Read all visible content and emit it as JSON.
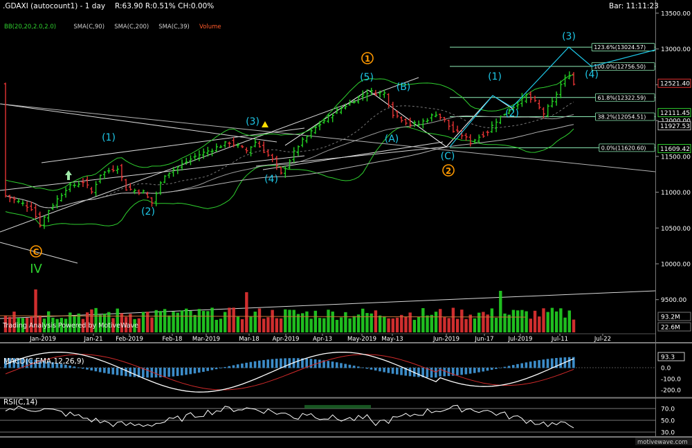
{
  "header": {
    "title": ".GDAXI (autocount1) - 1 day",
    "stats": "R:63.90  R:0.51% CH:0.00%",
    "bar_time": "Bar: 11:11:23"
  },
  "indicators": [
    {
      "label": "BB(20,20,2.0,2.0)",
      "color": "#2fd12f"
    },
    {
      "label": "SMA(C,90)",
      "color": "#cfcfcf"
    },
    {
      "label": "SMA(C,200)",
      "color": "#cfcfcf"
    },
    {
      "label": "SMA(C,39)",
      "color": "#cfcfcf"
    },
    {
      "label": "Volume",
      "color": "#ff5a2a"
    }
  ],
  "watermark": "Trading Analysis Powered by MotiveWave",
  "brand": "motivewave.com",
  "colors": {
    "bull": "#22d122",
    "bear": "#e53333",
    "bb": "#2fd12f",
    "sma": "#b8b8b8",
    "wave_minor": "#1ec8e8",
    "wave_major": "#ff9900",
    "wave_primary": "#2fd12f",
    "fib": "#8ff0b8",
    "macd": "#ffffff",
    "signal": "#d12a2a",
    "hist": "#3c8cc8"
  },
  "chart_data": {
    "type": "candlestick",
    "symbol": ".GDAXI",
    "timeframe": "1 day",
    "ylim": [
      9600,
      13550
    ],
    "y_ticks": [
      {
        "label": "13500.00",
        "value": 13500
      },
      {
        "label": "13000.00",
        "value": 13000
      },
      {
        "label": "12500.00",
        "value": 12500
      },
      {
        "label": "12000.00",
        "value": 12000
      },
      {
        "label": "11500.00",
        "value": 11500
      },
      {
        "label": "11000.00",
        "value": 11000
      },
      {
        "label": "10500.00",
        "value": 10500
      },
      {
        "label": "10000.00",
        "value": 10000
      },
      {
        "label": "9500.00",
        "value": 9500
      }
    ],
    "x_ticks": [
      "Jan-2019",
      "Jan-21",
      "Feb-2019",
      "Feb-18",
      "Mar-2019",
      "Mar-18",
      "Apr-2019",
      "Apr-13",
      "May-2019",
      "May-13",
      "Jun-2019",
      "Jun-17",
      "Jul-2019",
      "Jul-11",
      "Jul-22"
    ],
    "price_tags": [
      {
        "label": "12521.40",
        "value": 12521.4,
        "color": "#e53333"
      },
      {
        "label": "12111.45",
        "value": 12111.45,
        "color": "#2fd12f"
      },
      {
        "label": "11927.53",
        "value": 11927.53,
        "color": "#b8b8b8"
      },
      {
        "label": "11609.42",
        "value": 11609.42,
        "color": "#2fd12f"
      }
    ],
    "fib_levels": [
      {
        "label": "123.6%(13024.57)",
        "value": 13024.57
      },
      {
        "label": "100.0%(12756.50)",
        "value": 12756.5
      },
      {
        "label": "61.8%(12322.59)",
        "value": 12322.59
      },
      {
        "label": "38.2%(12054.51)",
        "value": 12054.51
      },
      {
        "label": "0.0%(11620.60)",
        "value": 11620.6
      }
    ],
    "wave_labels": [
      {
        "text": "(1)",
        "date": "Jan-21",
        "price": 11400,
        "style": "minor"
      },
      {
        "text": "(2)",
        "date": "Feb-10",
        "price": 10750,
        "style": "minor"
      },
      {
        "text": "(3)",
        "date": "Mar-15",
        "price": 12000,
        "style": "minor"
      },
      {
        "text": "(4)",
        "date": "Mar-27",
        "price": 11120,
        "style": "minor"
      },
      {
        "text": "(5)",
        "date": "May-03",
        "price": 12500,
        "style": "minor"
      },
      {
        "text": "(A)",
        "date": "May-13",
        "price": 11720,
        "style": "minor"
      },
      {
        "text": "(B)",
        "date": "May-20",
        "price": 12420,
        "style": "minor"
      },
      {
        "text": "(C)",
        "date": "Jun-03",
        "price": 11440,
        "style": "minor"
      },
      {
        "text": "(1)",
        "date": "Jun-18",
        "price": 12530,
        "style": "minor"
      },
      {
        "text": "(2)",
        "date": "Jun-26",
        "price": 12050,
        "style": "minor"
      },
      {
        "text": "(3)",
        "date": "Jul-12",
        "price": 13200,
        "style": "minor"
      },
      {
        "text": "(4)",
        "date": "Jul-16",
        "price": 12640,
        "style": "minor"
      },
      {
        "text": "1",
        "date": "May-03",
        "price": 12790,
        "style": "major"
      },
      {
        "text": "2",
        "date": "Jun-03",
        "price": 11260,
        "style": "major"
      },
      {
        "text": "C",
        "date": "Jan-02",
        "price": 10150,
        "style": "major"
      },
      {
        "text": "IV",
        "date": "Jan-02",
        "price": 9940,
        "style": "primary"
      }
    ],
    "volume_scale": [
      {
        "label": "93.2M",
        "value": 93.2
      },
      {
        "label": "22.6M",
        "value": 22.6
      }
    ],
    "macd": {
      "label": "MACD(C,EMA,12,26,9)",
      "ticks": [
        {
          "label": "93.3",
          "value": 93.3
        },
        {
          "label": "0.0",
          "value": 0
        },
        {
          "label": "-100.0",
          "value": -100
        },
        {
          "label": "-200.0",
          "value": -200
        }
      ]
    },
    "rsi": {
      "label": "RSI(C,14)",
      "ticks": [
        {
          "label": "70.0",
          "value": 70
        },
        {
          "label": "50.0",
          "value": 50
        },
        {
          "label": "30.0",
          "value": 30
        }
      ]
    }
  }
}
